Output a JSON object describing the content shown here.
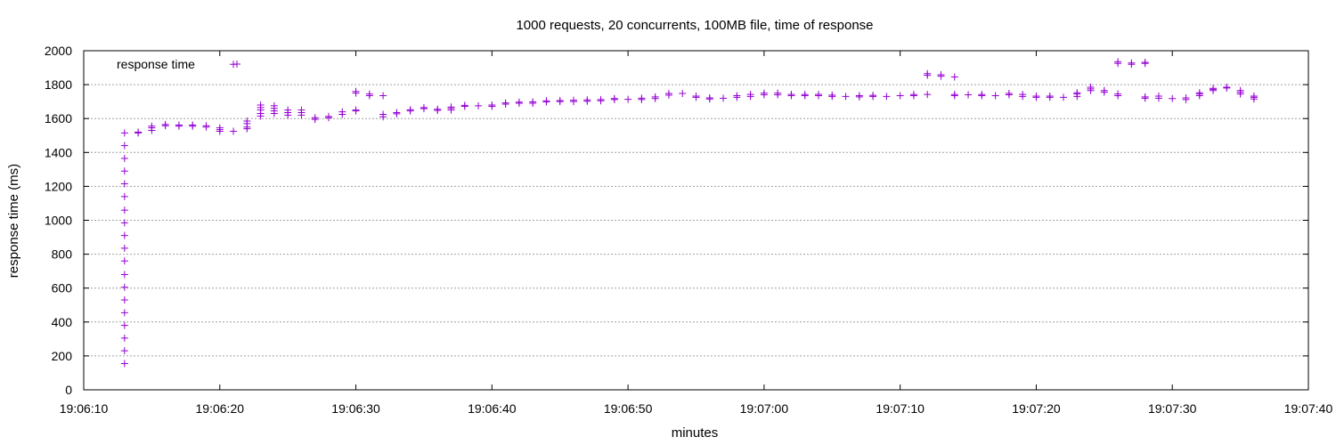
{
  "chart_data": {
    "type": "scatter",
    "title": "1000 requests, 20 concurrents, 100MB file, time of response",
    "xlabel": "minutes",
    "ylabel": "response time (ms)",
    "xlim": [
      "19:06:10",
      "19:07:40"
    ],
    "ylim": [
      0,
      2000
    ],
    "x_ticks": [
      "19:06:10",
      "19:06:20",
      "19:06:30",
      "19:06:40",
      "19:06:50",
      "19:07:00",
      "19:07:10",
      "19:07:20",
      "19:07:30",
      "19:07:40"
    ],
    "y_ticks": [
      0,
      200,
      400,
      600,
      800,
      1000,
      1200,
      1400,
      1600,
      1800,
      2000
    ],
    "grid": true,
    "legend_position": "top-left",
    "marker": "+",
    "series": [
      {
        "name": "response time",
        "color": "#9400d3",
        "points": [
          [
            "19:06:13",
            155
          ],
          [
            "19:06:13",
            230
          ],
          [
            "19:06:13",
            305
          ],
          [
            "19:06:13",
            380
          ],
          [
            "19:06:13",
            455
          ],
          [
            "19:06:13",
            530
          ],
          [
            "19:06:13",
            605
          ],
          [
            "19:06:13",
            680
          ],
          [
            "19:06:13",
            760
          ],
          [
            "19:06:13",
            835
          ],
          [
            "19:06:13",
            910
          ],
          [
            "19:06:13",
            985
          ],
          [
            "19:06:13",
            1060
          ],
          [
            "19:06:13",
            1140
          ],
          [
            "19:06:13",
            1215
          ],
          [
            "19:06:13",
            1290
          ],
          [
            "19:06:13",
            1365
          ],
          [
            "19:06:13",
            1440
          ],
          [
            "19:06:13",
            1515
          ],
          [
            "19:06:14",
            1515
          ],
          [
            "19:06:14",
            1520
          ],
          [
            "19:06:15",
            1530
          ],
          [
            "19:06:15",
            1545
          ],
          [
            "19:06:15",
            1555
          ],
          [
            "19:06:16",
            1558
          ],
          [
            "19:06:16",
            1565
          ],
          [
            "19:06:17",
            1555
          ],
          [
            "19:06:17",
            1562
          ],
          [
            "19:06:18",
            1555
          ],
          [
            "19:06:18",
            1562
          ],
          [
            "19:06:19",
            1550
          ],
          [
            "19:06:19",
            1558
          ],
          [
            "19:06:20",
            1525
          ],
          [
            "19:06:20",
            1535
          ],
          [
            "19:06:20",
            1545
          ],
          [
            "19:06:21",
            1525
          ],
          [
            "19:06:21",
            1920
          ],
          [
            "19:06:22",
            1540
          ],
          [
            "19:06:22",
            1550
          ],
          [
            "19:06:22",
            1570
          ],
          [
            "19:06:22",
            1585
          ],
          [
            "19:06:23",
            1615
          ],
          [
            "19:06:23",
            1630
          ],
          [
            "19:06:23",
            1650
          ],
          [
            "19:06:23",
            1665
          ],
          [
            "19:06:23",
            1680
          ],
          [
            "19:06:24",
            1630
          ],
          [
            "19:06:24",
            1645
          ],
          [
            "19:06:24",
            1660
          ],
          [
            "19:06:24",
            1675
          ],
          [
            "19:06:25",
            1620
          ],
          [
            "19:06:25",
            1635
          ],
          [
            "19:06:25",
            1650
          ],
          [
            "19:06:26",
            1620
          ],
          [
            "19:06:26",
            1635
          ],
          [
            "19:06:26",
            1650
          ],
          [
            "19:06:27",
            1595
          ],
          [
            "19:06:27",
            1605
          ],
          [
            "19:06:28",
            1605
          ],
          [
            "19:06:28",
            1612
          ],
          [
            "19:06:29",
            1625
          ],
          [
            "19:06:29",
            1640
          ],
          [
            "19:06:30",
            1645
          ],
          [
            "19:06:30",
            1650
          ],
          [
            "19:06:30",
            1750
          ],
          [
            "19:06:30",
            1760
          ],
          [
            "19:06:31",
            1735
          ],
          [
            "19:06:31",
            1745
          ],
          [
            "19:06:32",
            1610
          ],
          [
            "19:06:32",
            1625
          ],
          [
            "19:06:32",
            1735
          ],
          [
            "19:06:33",
            1628
          ],
          [
            "19:06:33",
            1635
          ],
          [
            "19:06:34",
            1645
          ],
          [
            "19:06:34",
            1652
          ],
          [
            "19:06:35",
            1658
          ],
          [
            "19:06:35",
            1665
          ],
          [
            "19:06:36",
            1648
          ],
          [
            "19:06:36",
            1655
          ],
          [
            "19:06:37",
            1650
          ],
          [
            "19:06:37",
            1660
          ],
          [
            "19:06:37",
            1668
          ],
          [
            "19:06:38",
            1672
          ],
          [
            "19:06:38",
            1678
          ],
          [
            "19:06:39",
            1675
          ],
          [
            "19:06:40",
            1672
          ],
          [
            "19:06:40",
            1680
          ],
          [
            "19:06:41",
            1685
          ],
          [
            "19:06:41",
            1692
          ],
          [
            "19:06:42",
            1690
          ],
          [
            "19:06:42",
            1697
          ],
          [
            "19:06:43",
            1690
          ],
          [
            "19:06:43",
            1698
          ],
          [
            "19:06:44",
            1698
          ],
          [
            "19:06:44",
            1705
          ],
          [
            "19:06:45",
            1700
          ],
          [
            "19:06:45",
            1706
          ],
          [
            "19:06:46",
            1700
          ],
          [
            "19:06:46",
            1708
          ],
          [
            "19:06:47",
            1702
          ],
          [
            "19:06:47",
            1710
          ],
          [
            "19:06:48",
            1705
          ],
          [
            "19:06:48",
            1712
          ],
          [
            "19:06:49",
            1712
          ],
          [
            "19:06:49",
            1718
          ],
          [
            "19:06:50",
            1713
          ],
          [
            "19:06:51",
            1712
          ],
          [
            "19:06:51",
            1720
          ],
          [
            "19:06:52",
            1718
          ],
          [
            "19:06:52",
            1728
          ],
          [
            "19:06:53",
            1738
          ],
          [
            "19:06:53",
            1748
          ],
          [
            "19:06:54",
            1748
          ],
          [
            "19:06:55",
            1725
          ],
          [
            "19:06:55",
            1732
          ],
          [
            "19:06:56",
            1715
          ],
          [
            "19:06:56",
            1722
          ],
          [
            "19:06:57",
            1720
          ],
          [
            "19:06:58",
            1725
          ],
          [
            "19:06:58",
            1735
          ],
          [
            "19:06:59",
            1730
          ],
          [
            "19:06:59",
            1742
          ],
          [
            "19:07:00",
            1740
          ],
          [
            "19:07:00",
            1750
          ],
          [
            "19:07:01",
            1740
          ],
          [
            "19:07:01",
            1750
          ],
          [
            "19:07:02",
            1735
          ],
          [
            "19:07:02",
            1743
          ],
          [
            "19:07:03",
            1735
          ],
          [
            "19:07:03",
            1742
          ],
          [
            "19:07:04",
            1735
          ],
          [
            "19:07:04",
            1743
          ],
          [
            "19:07:05",
            1730
          ],
          [
            "19:07:05",
            1738
          ],
          [
            "19:07:06",
            1730
          ],
          [
            "19:07:07",
            1728
          ],
          [
            "19:07:07",
            1735
          ],
          [
            "19:07:08",
            1730
          ],
          [
            "19:07:08",
            1737
          ],
          [
            "19:07:09",
            1730
          ],
          [
            "19:07:10",
            1735
          ],
          [
            "19:07:11",
            1735
          ],
          [
            "19:07:11",
            1742
          ],
          [
            "19:07:12",
            1742
          ],
          [
            "19:07:12",
            1855
          ],
          [
            "19:07:12",
            1865
          ],
          [
            "19:07:13",
            1850
          ],
          [
            "19:07:13",
            1858
          ],
          [
            "19:07:14",
            1735
          ],
          [
            "19:07:14",
            1742
          ],
          [
            "19:07:14",
            1845
          ],
          [
            "19:07:15",
            1740
          ],
          [
            "19:07:16",
            1735
          ],
          [
            "19:07:16",
            1742
          ],
          [
            "19:07:17",
            1735
          ],
          [
            "19:07:18",
            1740
          ],
          [
            "19:07:18",
            1748
          ],
          [
            "19:07:19",
            1730
          ],
          [
            "19:07:19",
            1742
          ],
          [
            "19:07:20",
            1725
          ],
          [
            "19:07:20",
            1732
          ],
          [
            "19:07:21",
            1725
          ],
          [
            "19:07:21",
            1732
          ],
          [
            "19:07:22",
            1725
          ],
          [
            "19:07:23",
            1730
          ],
          [
            "19:07:23",
            1745
          ],
          [
            "19:07:23",
            1752
          ],
          [
            "19:07:24",
            1765
          ],
          [
            "19:07:24",
            1775
          ],
          [
            "19:07:24",
            1785
          ],
          [
            "19:07:25",
            1755
          ],
          [
            "19:07:25",
            1765
          ],
          [
            "19:07:26",
            1735
          ],
          [
            "19:07:26",
            1745
          ],
          [
            "19:07:26",
            1925
          ],
          [
            "19:07:26",
            1935
          ],
          [
            "19:07:27",
            1920
          ],
          [
            "19:07:27",
            1928
          ],
          [
            "19:07:28",
            1720
          ],
          [
            "19:07:28",
            1728
          ],
          [
            "19:07:28",
            1925
          ],
          [
            "19:07:28",
            1932
          ],
          [
            "19:07:29",
            1720
          ],
          [
            "19:07:29",
            1732
          ],
          [
            "19:07:30",
            1718
          ],
          [
            "19:07:31",
            1712
          ],
          [
            "19:07:31",
            1722
          ],
          [
            "19:07:32",
            1735
          ],
          [
            "19:07:32",
            1745
          ],
          [
            "19:07:32",
            1752
          ],
          [
            "19:07:33",
            1765
          ],
          [
            "19:07:33",
            1772
          ],
          [
            "19:07:33",
            1778
          ],
          [
            "19:07:34",
            1780
          ],
          [
            "19:07:34",
            1785
          ],
          [
            "19:07:35",
            1745
          ],
          [
            "19:07:35",
            1755
          ],
          [
            "19:07:35",
            1765
          ],
          [
            "19:07:36",
            1715
          ],
          [
            "19:07:36",
            1725
          ],
          [
            "19:07:36",
            1732
          ]
        ]
      }
    ]
  }
}
